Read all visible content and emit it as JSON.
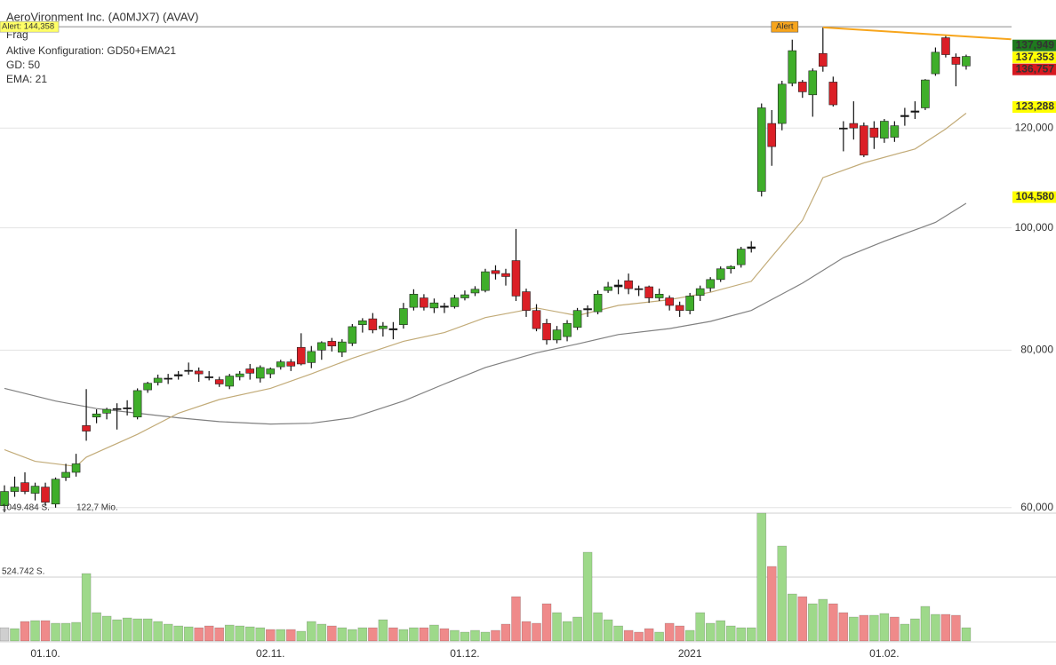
{
  "chart_data": {
    "type": "candlestick",
    "title": "AeroVironment Inc. (A0MJX7) (AVAV)",
    "subtitle": "Aktive Konfiguration: GD50+EMA21",
    "status_label": "Frag",
    "categories": [
      null,
      null,
      null,
      null,
      "01.10.",
      null,
      null,
      null,
      null,
      null,
      null,
      null,
      null,
      null,
      null,
      null,
      null,
      null,
      null,
      null,
      null,
      null,
      null,
      null,
      null,
      null,
      "02.11.",
      null,
      null,
      null,
      null,
      null,
      null,
      null,
      null,
      null,
      null,
      null,
      null,
      null,
      null,
      null,
      null,
      null,
      null,
      "01.12.",
      null,
      null,
      null,
      null,
      null,
      null,
      null,
      null,
      null,
      null,
      null,
      null,
      null,
      null,
      null,
      null,
      null,
      null,
      null,
      null,
      null,
      "2021",
      null,
      null,
      null,
      null,
      null,
      null,
      null,
      null,
      null,
      null,
      null,
      null,
      null,
      null,
      null,
      null,
      null,
      null,
      "01.02.",
      null,
      null,
      null,
      null,
      null,
      null,
      null,
      null
    ],
    "open": [
      60.2,
      61.8,
      62.8,
      61.6,
      62.3,
      60.4,
      63.4,
      64.0,
      69.7,
      70.8,
      71.3,
      71.8,
      71.9,
      70.8,
      74.4,
      75.4,
      75.9,
      76.3,
      77.0,
      77.0,
      76.2,
      75.8,
      74.9,
      76.2,
      77.3,
      76.0,
      76.6,
      77.6,
      78.3,
      80.4,
      78.2,
      80.0,
      81.3,
      79.7,
      81.0,
      83.8,
      84.7,
      83.2,
      83.0,
      83.8,
      86.5,
      88.0,
      86.4,
      86.7,
      86.6,
      88.0,
      88.8,
      89.2,
      92.5,
      92.0,
      94.2,
      89.0,
      86.0,
      84.0,
      81.5,
      82.0,
      83.4,
      86.1,
      85.8,
      89.2,
      89.8,
      90.8,
      89.5,
      89.8,
      88.0,
      88.0,
      86.8,
      86.0,
      88.4,
      89.6,
      91.0,
      92.8,
      93.5,
      96.3,
      106.9,
      121.0,
      121.0,
      130.2,
      130.5,
      127.5,
      137.5,
      130.5,
      120.0,
      121.0,
      120.5,
      120.0,
      117.8,
      118.0,
      122.5,
      123.5,
      124.5,
      132.5,
      141.5,
      136.6,
      134.4
    ],
    "high": [
      62.5,
      63.5,
      64.0,
      62.8,
      62.8,
      63.4,
      65.0,
      66.2,
      74.5,
      71.8,
      72.0,
      72.6,
      73.0,
      74.6,
      75.5,
      76.5,
      76.6,
      77.0,
      78.2,
      77.5,
      77.0,
      76.2,
      76.6,
      77.0,
      78.0,
      77.8,
      77.5,
      78.6,
      78.7,
      82.5,
      80.6,
      81.3,
      81.8,
      81.6,
      83.9,
      84.8,
      85.6,
      84.2,
      84.2,
      87.2,
      89.4,
      88.6,
      87.9,
      87.2,
      88.5,
      89.2,
      89.9,
      92.8,
      93.4,
      92.8,
      99.8,
      89.5,
      87.0,
      84.7,
      83.6,
      84.5,
      86.4,
      86.8,
      89.2,
      90.6,
      91.0,
      92.0,
      90.0,
      90.0,
      89.5,
      88.4,
      87.4,
      88.8,
      90.0,
      91.4,
      93.2,
      93.4,
      96.6,
      97.6,
      125.5,
      124.0,
      130.8,
      141.0,
      131.0,
      133.8,
      144.2,
      131.8,
      121.5,
      126.0,
      121.2,
      121.5,
      122.0,
      121.5,
      124.5,
      126.0,
      131.2,
      139.0,
      142.0,
      137.5,
      137.2
    ],
    "low": [
      59.5,
      61.2,
      61.5,
      60.8,
      60.2,
      60.0,
      63.0,
      63.5,
      67.8,
      70.0,
      70.5,
      69.2,
      71.0,
      70.5,
      74.0,
      75.0,
      75.2,
      75.8,
      76.5,
      75.5,
      75.7,
      74.8,
      74.5,
      75.7,
      75.8,
      75.4,
      76.0,
      77.2,
      77.0,
      77.8,
      77.4,
      78.6,
      79.8,
      79.0,
      80.6,
      82.6,
      82.5,
      82.0,
      81.6,
      83.2,
      86.0,
      86.0,
      85.6,
      85.6,
      86.3,
      87.6,
      88.3,
      88.9,
      91.0,
      90.0,
      87.5,
      85.0,
      82.8,
      80.8,
      81.0,
      81.3,
      83.0,
      85.0,
      85.4,
      88.8,
      88.6,
      88.6,
      88.3,
      87.2,
      87.5,
      86.0,
      85.0,
      85.4,
      87.5,
      89.0,
      90.6,
      92.0,
      93.0,
      95.6,
      105.9,
      112.0,
      119.5,
      129.5,
      126.8,
      122.5,
      133.0,
      124.8,
      115.0,
      117.5,
      113.8,
      115.5,
      116.8,
      117.0,
      120.5,
      122.0,
      124.0,
      132.0,
      136.5,
      129.5,
      133.5
    ],
    "close": [
      61.8,
      62.3,
      61.8,
      62.4,
      60.6,
      63.2,
      64.0,
      65.0,
      69.0,
      71.2,
      71.8,
      71.9,
      72.0,
      74.3,
      75.3,
      76.0,
      76.0,
      76.5,
      77.1,
      76.6,
      76.1,
      75.2,
      76.3,
      76.6,
      76.7,
      77.5,
      77.3,
      78.3,
      77.7,
      78.0,
      79.8,
      81.1,
      80.6,
      81.2,
      83.5,
      84.4,
      83.0,
      83.6,
      83.2,
      86.3,
      88.6,
      86.5,
      87.2,
      86.5,
      88.0,
      88.5,
      89.4,
      92.3,
      92.0,
      91.5,
      88.3,
      86.0,
      83.2,
      81.5,
      83.0,
      84.0,
      86.0,
      86.3,
      88.6,
      89.8,
      90.1,
      89.5,
      89.4,
      88.0,
      88.6,
      86.8,
      86.0,
      88.3,
      89.5,
      91.0,
      92.8,
      93.2,
      96.2,
      96.6,
      124.5,
      116.0,
      130.0,
      138.2,
      128.2,
      133.2,
      134.3,
      125.2,
      119.8,
      120.0,
      114.2,
      118.0,
      121.5,
      120.5,
      122.8,
      123.8,
      131.0,
      137.8,
      137.2,
      134.8,
      136.757
    ],
    "up_color": "#3fae2a",
    "down_color": "#db1f26",
    "ylim": [
      59.4,
      144.4
    ],
    "log_scale": true,
    "grid": true,
    "yticks": [
      {
        "value": 60,
        "label": "60,000"
      },
      {
        "value": 80,
        "label": "80,000"
      },
      {
        "value": 100,
        "label": "100,000"
      },
      {
        "value": 120,
        "label": "120,000"
      }
    ],
    "overlays": [
      {
        "name": "GD: 50",
        "color": "#808080",
        "x": [
          0,
          5,
          9,
          13,
          17,
          21,
          26,
          30,
          34,
          39,
          43,
          47,
          52,
          56,
          60,
          65,
          69,
          73,
          78,
          82,
          86,
          91,
          94
        ],
        "values": [
          74.6,
          72.9,
          71.9,
          71.3,
          70.7,
          70.2,
          69.9,
          70.0,
          70.7,
          72.9,
          75.2,
          77.5,
          79.6,
          80.9,
          82.3,
          83.2,
          84.3,
          86.0,
          90.4,
          94.7,
          97.6,
          101.0,
          104.58
        ]
      },
      {
        "name": "EMA: 21",
        "color": "#c2ab78",
        "x": [
          0,
          3,
          7,
          8,
          13,
          17,
          21,
          26,
          30,
          34,
          39,
          43,
          47,
          52,
          56,
          60,
          65,
          69,
          73,
          75,
          78,
          80,
          84,
          89,
          92,
          94
        ],
        "values": [
          66.7,
          65.3,
          64.7,
          65.8,
          68.6,
          71.3,
          73.1,
          74.6,
          76.6,
          78.8,
          81.3,
          82.6,
          84.9,
          86.4,
          85.2,
          86.8,
          87.7,
          88.9,
          90.7,
          94.9,
          101.4,
          109.6,
          112.6,
          115.5,
          119.8,
          123.288
        ]
      }
    ],
    "price_labels": [
      {
        "value": 137.949,
        "label": "137,949",
        "color": "#1f7a1f",
        "text_color": "#ffffff"
      },
      {
        "value": 137.353,
        "label": "137,353",
        "color": "#ffff00",
        "text_color": "#000000"
      },
      {
        "value": 136.757,
        "label": "136,757",
        "color": "#d71920",
        "text_color": "#ffffff"
      },
      {
        "value": 123.288,
        "label": "123,288",
        "color": "#ffff00",
        "text_color": "#000000"
      },
      {
        "value": 104.58,
        "label": "104,580",
        "color": "#ffff00",
        "text_color": "#000000"
      }
    ],
    "alert": {
      "value": 144.358,
      "label": "Alert: 144,358",
      "marker": "Alert",
      "color": "#f7a51c"
    },
    "trendline": {
      "color": "#f7a51c",
      "x": [
        80,
        98.4
      ],
      "values": [
        144.2,
        141.1
      ]
    },
    "volume": {
      "values": [
        109320,
        102032,
        160336,
        167624,
        167624,
        145760,
        145760,
        153048,
        553888,
        233216,
        204064,
        174912,
        189488,
        182200,
        182200,
        160336,
        138472,
        123896,
        116608,
        109320,
        123896,
        109320,
        131184,
        123896,
        116608,
        109320,
        94744,
        94744,
        94744,
        80168,
        160336,
        138472,
        123896,
        109320,
        94744,
        109320,
        109320,
        174912,
        109320,
        94744,
        109320,
        109320,
        131184,
        102032,
        87456,
        72880,
        87456,
        72880,
        87456,
        138472,
        364400,
        160336,
        145760,
        306096,
        233216,
        160336,
        196776,
        728800,
        233216,
        174912,
        123896,
        87456,
        72880,
        102032,
        72880,
        145760,
        123896,
        87456,
        233216,
        145760,
        167624,
        123896,
        109320,
        109320,
        1049472,
        612192,
        779816,
        386264,
        364400,
        306096,
        342536,
        306096,
        233216,
        196776,
        211352,
        211352,
        225928,
        196776,
        138472,
        182200,
        284232,
        218640,
        218640,
        211352,
        109320
      ],
      "ylim": [
        0,
        1049484
      ],
      "yticks": [
        {
          "value": 524742,
          "label": "524.742 S."
        },
        {
          "value": 1049484,
          "label": "1049.484 S."
        }
      ],
      "note": "122,7 Mio.",
      "up_color": "#9ed98a",
      "down_color": "#ef8a8a",
      "neutral_color": "#cfcfcf"
    }
  }
}
